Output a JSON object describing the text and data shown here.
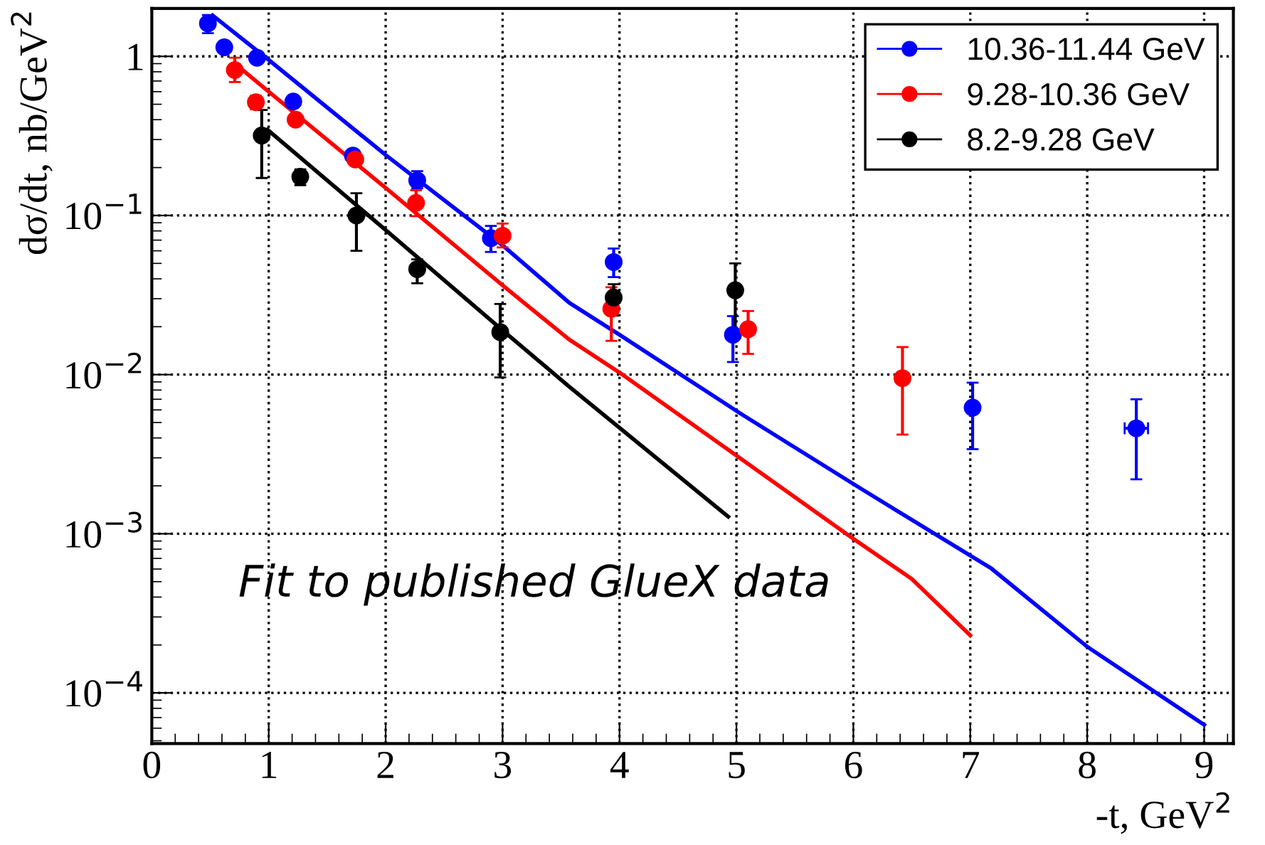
{
  "chart_data": {
    "type": "scatter",
    "xlabel": "-t, GeV$^{2}$",
    "ylabel": "dσ/dt, nb/GeV$^{2}$",
    "log": "y",
    "xlim": [
      0,
      9.25
    ],
    "ylim": [
      4.8e-05,
      2
    ],
    "xticks": [
      0,
      1,
      2,
      3,
      4,
      5,
      6,
      7,
      8,
      9
    ],
    "yticks": [
      {
        "value": 0.0001,
        "label": "10$^{−4}$"
      },
      {
        "value": 0.001,
        "label": "10$^{−3}$"
      },
      {
        "value": 0.01,
        "label": "10$^{−2}$"
      },
      {
        "value": 0.1,
        "label": "10$^{−1}$"
      },
      1
    ],
    "grid": true,
    "legend": "top right",
    "marker": "circle",
    "annotations": [
      "Fit to published GlueX data"
    ],
    "series": [
      {
        "name": "10.36-11.44 GeV",
        "color": "#0000ff",
        "x": [
          0.48,
          0.62,
          0.9,
          1.21,
          1.72,
          2.27,
          2.9,
          3.95,
          4.97,
          7.02,
          8.42
        ],
        "values": [
          1.61,
          1.14,
          0.98,
          0.52,
          0.238,
          0.166,
          0.072,
          0.051,
          0.0178,
          0.0062,
          0.0046
        ],
        "errors": [
          [
            1.4,
            1.82
          ],
          null,
          null,
          null,
          null,
          [
            0.148,
            0.19
          ],
          [
            0.059,
            0.086
          ],
          [
            0.041,
            0.062
          ],
          [
            0.012,
            0.0233
          ],
          [
            0.0034,
            0.0089
          ],
          [
            0.0022,
            0.007
          ]
        ],
        "xerrors": [
          null,
          null,
          null,
          null,
          null,
          null,
          null,
          null,
          null,
          null,
          0.1
        ]
      },
      {
        "name": "9.28-10.36 GeV",
        "color": "#ff0000",
        "x": [
          0.71,
          0.89,
          1.23,
          1.74,
          2.26,
          3.0,
          3.93,
          5.1,
          6.42
        ],
        "values": [
          0.82,
          0.515,
          0.4,
          0.225,
          0.12,
          0.0746,
          0.0259,
          0.0193,
          0.0095
        ],
        "errors": [
          [
            0.69,
            0.98
          ],
          [
            0.465,
            0.565
          ],
          null,
          null,
          [
            0.099,
            0.144
          ],
          [
            0.063,
            0.089
          ],
          [
            0.0163,
            0.0354
          ],
          [
            0.0135,
            0.0251
          ],
          [
            0.0042,
            0.0149
          ]
        ]
      },
      {
        "name": "8.2-9.28 GeV",
        "color": "#000000",
        "x": [
          0.94,
          1.27,
          1.75,
          2.27,
          2.98,
          3.95,
          4.99
        ],
        "values": [
          0.318,
          0.175,
          0.1,
          0.046,
          0.0185,
          0.0305,
          0.0339
        ],
        "errors": [
          [
            0.172,
            0.46
          ],
          [
            0.155,
            0.195
          ],
          [
            0.06,
            0.138
          ],
          [
            0.0375,
            0.053
          ],
          [
            0.0096,
            0.0278
          ],
          [
            0.0235,
            0.037
          ],
          [
            0.0171,
            0.05
          ]
        ]
      },
      {
        "type": "line",
        "marker": "none",
        "color": "#0000ff",
        "x": [
          0.52,
          1.0,
          2.0,
          3.0,
          3.57,
          4.0,
          5.05,
          6.05,
          7.18,
          8.0,
          9.0
        ],
        "values": [
          1.81,
          0.95,
          0.24,
          0.065,
          0.0283,
          0.0178,
          0.0056,
          0.00195,
          0.000605,
          0.000195,
          6.3e-05
        ]
      },
      {
        "type": "line",
        "marker": "none",
        "color": "#ff0000",
        "x": [
          0.71,
          1.0,
          2.0,
          3.0,
          3.57,
          4.0,
          5.0,
          6.0,
          6.5,
          7.0
        ],
        "values": [
          0.9,
          0.6,
          0.149,
          0.0364,
          0.0166,
          0.0103,
          0.0031,
          0.00093,
          0.00052,
          0.00023
        ]
      },
      {
        "type": "line",
        "marker": "none",
        "color": "#000000",
        "x": [
          0.99,
          2.0,
          3.0,
          3.57,
          4.93
        ],
        "values": [
          0.346,
          0.081,
          0.019,
          0.0084,
          0.00128
        ]
      }
    ]
  }
}
